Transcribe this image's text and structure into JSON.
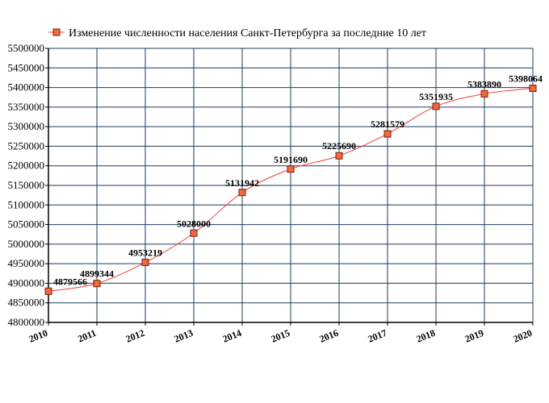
{
  "chart_data": {
    "type": "line",
    "title": "",
    "legend": {
      "position": "top",
      "entries": [
        "Изменение численности населения Санкт-Петербурга за последние 10 лет"
      ]
    },
    "xlabel": "",
    "ylabel": "",
    "x": [
      "2010",
      "2011",
      "2012",
      "2013",
      "2014",
      "2015",
      "2016",
      "2017",
      "2018",
      "2019",
      "2020"
    ],
    "series": [
      {
        "name": "Изменение численности населения Санкт-Петербурга за последние 10 лет",
        "values": [
          4879566,
          4899344,
          4953219,
          5028000,
          5131942,
          5191690,
          5225690,
          5281579,
          5351935,
          5383890,
          5398064
        ],
        "labels": [
          "4879566",
          "4899344",
          "4953219",
          "5028000",
          "5131942",
          "5191690",
          "5225690",
          "5281579",
          "5351935",
          "5383890",
          "5398064"
        ]
      }
    ],
    "ylim": [
      4800000,
      5500000
    ],
    "yticks": [
      "4800000",
      "4850000",
      "4900000",
      "4950000",
      "5000000",
      "5050000",
      "5100000",
      "5150000",
      "5200000",
      "5250000",
      "5300000",
      "5350000",
      "5400000",
      "5450000",
      "5500000"
    ],
    "grid": true,
    "colors": {
      "line": "#e8413a",
      "marker_fill": "#f06a3c",
      "marker_stroke": "#7a1c10",
      "grid": "#1f3a5f",
      "axis": "#000000"
    }
  }
}
